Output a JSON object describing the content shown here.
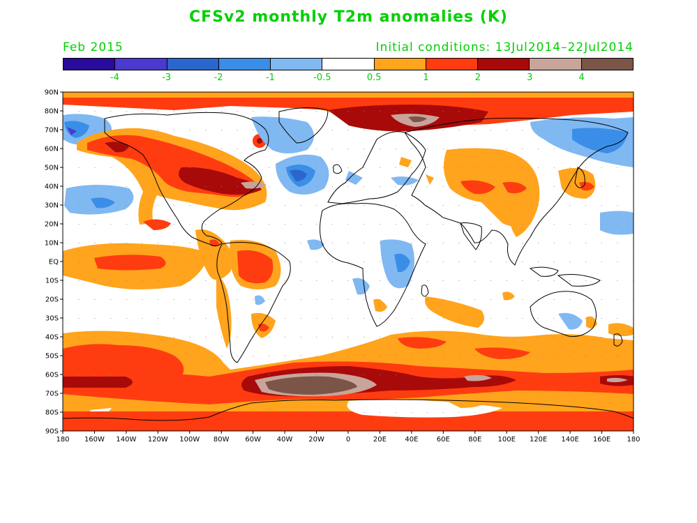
{
  "title": "CFSv2 monthly T2m anomalies (K)",
  "valid_month": "Feb 2015",
  "initial_conditions": "Initial conditions: 13Jul2014–22Jul2014",
  "colorbar": {
    "colors": [
      "#2a0a9a",
      "#4a3ad0",
      "#2a66cc",
      "#3a8ee8",
      "#80b8f2",
      "#ffffff",
      "#ffa41c",
      "#ff3c10",
      "#a80a0a",
      "#c9a49a",
      "#7a5548"
    ],
    "labels": [
      "-4",
      "-3",
      "-2",
      "-1",
      "-0.5",
      "0.5",
      "1",
      "2",
      "3",
      "4"
    ]
  },
  "map": {
    "lat_labels": [
      "90N",
      "80N",
      "70N",
      "60N",
      "50N",
      "40N",
      "30N",
      "20N",
      "10N",
      "EQ",
      "10S",
      "20S",
      "30S",
      "40S",
      "50S",
      "60S",
      "70S",
      "80S",
      "90S"
    ],
    "lon_labels": [
      "180",
      "160W",
      "140W",
      "120W",
      "100W",
      "80W",
      "60W",
      "40W",
      "20W",
      "0",
      "20E",
      "40E",
      "60E",
      "80E",
      "100E",
      "120E",
      "140E",
      "160E",
      "180"
    ]
  }
}
